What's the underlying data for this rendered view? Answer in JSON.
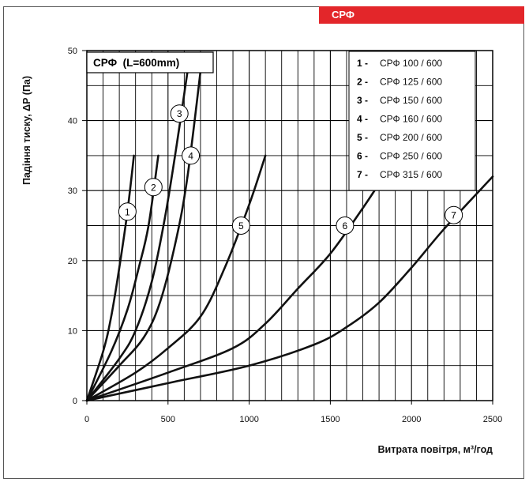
{
  "header": {
    "tag_label": "СРФ",
    "tag_color": "#e3262a"
  },
  "chart_data": {
    "type": "line",
    "title": "СРФ  (L=600mm)",
    "xlabel": "Витрата повітря, м³/год",
    "ylabel": "Падіння тиску, ΔP (Па)",
    "xlim": [
      0,
      2500
    ],
    "ylim": [
      0,
      50
    ],
    "x_ticks": [
      "0",
      "500",
      "1000",
      "1500",
      "2000",
      "2500"
    ],
    "y_ticks": [
      "0",
      "10",
      "20",
      "30",
      "40",
      "50"
    ],
    "grid": true,
    "legend_position": "top-right",
    "legend": [
      {
        "num": "1 -",
        "label": "СРФ 100 / 600"
      },
      {
        "num": "2 -",
        "label": "СРФ 125 / 600"
      },
      {
        "num": "3 -",
        "label": "СРФ 150 / 600"
      },
      {
        "num": "4 -",
        "label": "СРФ 160 / 600"
      },
      {
        "num": "5 -",
        "label": "СРФ 200 / 600"
      },
      {
        "num": "6 -",
        "label": "СРФ 250 / 600"
      },
      {
        "num": "7 -",
        "label": "СРФ 315 / 600"
      }
    ],
    "series": [
      {
        "label_num": "1",
        "label_at": [
          250,
          27
        ],
        "points": [
          [
            0,
            0
          ],
          [
            100,
            7
          ],
          [
            150,
            12
          ],
          [
            200,
            19
          ],
          [
            250,
            27
          ],
          [
            290,
            35
          ]
        ]
      },
      {
        "label_num": "2",
        "label_at": [
          410,
          30.5
        ],
        "points": [
          [
            0,
            0
          ],
          [
            150,
            7
          ],
          [
            250,
            13
          ],
          [
            320,
            19
          ],
          [
            380,
            25
          ],
          [
            440,
            35
          ]
        ]
      },
      {
        "label_num": "3",
        "label_at": [
          570,
          41
        ],
        "points": [
          [
            0,
            0
          ],
          [
            200,
            6
          ],
          [
            300,
            10
          ],
          [
            400,
            17
          ],
          [
            480,
            26
          ],
          [
            550,
            36
          ],
          [
            620,
            47
          ]
        ]
      },
      {
        "label_num": "4",
        "label_at": [
          640,
          35
        ],
        "points": [
          [
            0,
            0
          ],
          [
            200,
            5
          ],
          [
            350,
            9
          ],
          [
            450,
            14
          ],
          [
            550,
            23
          ],
          [
            620,
            32
          ],
          [
            700,
            47
          ]
        ]
      },
      {
        "label_num": "5",
        "label_at": [
          950,
          25
        ],
        "points": [
          [
            0,
            0
          ],
          [
            300,
            4
          ],
          [
            500,
            7.5
          ],
          [
            700,
            12
          ],
          [
            850,
            19
          ],
          [
            1000,
            28
          ],
          [
            1100,
            35
          ]
        ]
      },
      {
        "label_num": "6",
        "label_at": [
          1590,
          25
        ],
        "points": [
          [
            0,
            0
          ],
          [
            500,
            4
          ],
          [
            900,
            7.5
          ],
          [
            1100,
            11
          ],
          [
            1300,
            16
          ],
          [
            1500,
            21
          ],
          [
            1700,
            27.5
          ],
          [
            1800,
            31
          ]
        ]
      },
      {
        "label_num": "7",
        "label_at": [
          2260,
          26.5
        ],
        "points": [
          [
            0,
            0
          ],
          [
            500,
            2.5
          ],
          [
            1000,
            5
          ],
          [
            1400,
            8
          ],
          [
            1600,
            10.5
          ],
          [
            1800,
            14
          ],
          [
            2000,
            19
          ],
          [
            2200,
            24.5
          ],
          [
            2500,
            32
          ]
        ]
      }
    ]
  }
}
